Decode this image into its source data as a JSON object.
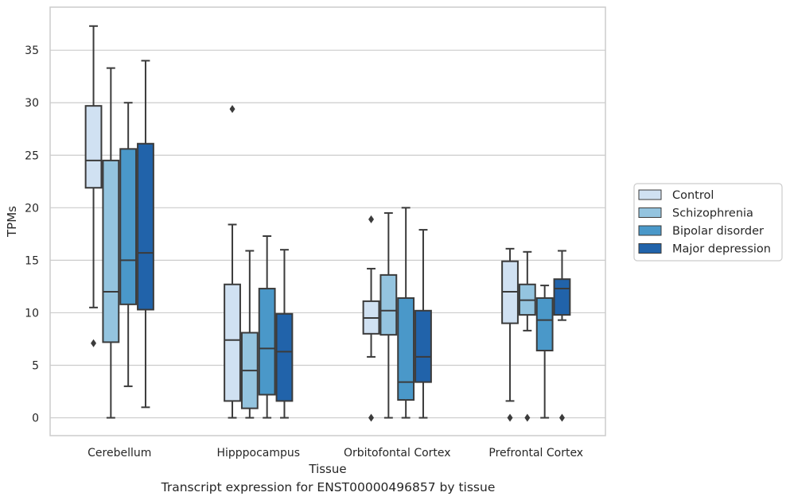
{
  "caption": "Transcript expression for ENST00000496857 by tissue",
  "chart_data": {
    "type": "box",
    "xlabel": "Tissue",
    "ylabel": "TPMs",
    "ylim": [
      -1.7,
      39.1
    ],
    "yticks": [
      0,
      5,
      10,
      15,
      20,
      25,
      30,
      35
    ],
    "grid": "horizontal",
    "legend_position": "right",
    "categories": [
      "Cerebellum",
      "Hipppocampus",
      "Orbitofontal Cortex",
      "Prefrontal Cortex"
    ],
    "series": [
      {
        "name": "Control",
        "color": "#d0e1f2",
        "boxes": [
          {
            "whislo": 10.5,
            "q1": 21.9,
            "med": 24.5,
            "q3": 29.7,
            "whishi": 37.3,
            "fliers": [
              7.1
            ]
          },
          {
            "whislo": 0,
            "q1": 1.6,
            "med": 7.4,
            "q3": 12.7,
            "whishi": 18.4,
            "fliers": [
              29.4
            ]
          },
          {
            "whislo": 5.8,
            "q1": 8.0,
            "med": 9.5,
            "q3": 11.1,
            "whishi": 14.2,
            "fliers": [
              0,
              18.9
            ]
          },
          {
            "whislo": 1.6,
            "q1": 9.0,
            "med": 12.0,
            "q3": 14.9,
            "whishi": 16.1,
            "fliers": [
              0
            ]
          }
        ]
      },
      {
        "name": "Schizophrenia",
        "color": "#94c4df",
        "boxes": [
          {
            "whislo": 0,
            "q1": 7.2,
            "med": 12.0,
            "q3": 24.5,
            "whishi": 33.3,
            "fliers": []
          },
          {
            "whislo": 0,
            "q1": 0.9,
            "med": 4.5,
            "q3": 8.1,
            "whishi": 15.9,
            "fliers": []
          },
          {
            "whislo": 0,
            "q1": 7.9,
            "med": 10.2,
            "q3": 13.6,
            "whishi": 19.5,
            "fliers": []
          },
          {
            "whislo": 8.3,
            "q1": 9.8,
            "med": 11.2,
            "q3": 12.7,
            "whishi": 15.8,
            "fliers": [
              0
            ]
          }
        ]
      },
      {
        "name": "Bipolar disorder",
        "color": "#4a98c9",
        "boxes": [
          {
            "whislo": 3.0,
            "q1": 10.8,
            "med": 15.0,
            "q3": 25.6,
            "whishi": 30.0,
            "fliers": []
          },
          {
            "whislo": 0,
            "q1": 2.2,
            "med": 6.6,
            "q3": 12.3,
            "whishi": 17.3,
            "fliers": []
          },
          {
            "whislo": 0,
            "q1": 1.7,
            "med": 3.4,
            "q3": 11.4,
            "whishi": 20.0,
            "fliers": []
          },
          {
            "whislo": 0,
            "q1": 6.4,
            "med": 9.3,
            "q3": 11.4,
            "whishi": 12.6,
            "fliers": []
          }
        ]
      },
      {
        "name": "Major depression",
        "color": "#2163aa",
        "boxes": [
          {
            "whislo": 1.0,
            "q1": 10.3,
            "med": 15.7,
            "q3": 26.1,
            "whishi": 34.0,
            "fliers": []
          },
          {
            "whislo": 0,
            "q1": 1.6,
            "med": 6.3,
            "q3": 9.9,
            "whishi": 16.0,
            "fliers": []
          },
          {
            "whislo": 0,
            "q1": 3.4,
            "med": 5.8,
            "q3": 10.2,
            "whishi": 17.9,
            "fliers": []
          },
          {
            "whislo": 9.3,
            "q1": 9.8,
            "med": 12.3,
            "q3": 13.2,
            "whishi": 15.9,
            "fliers": [
              0
            ]
          }
        ]
      }
    ]
  }
}
